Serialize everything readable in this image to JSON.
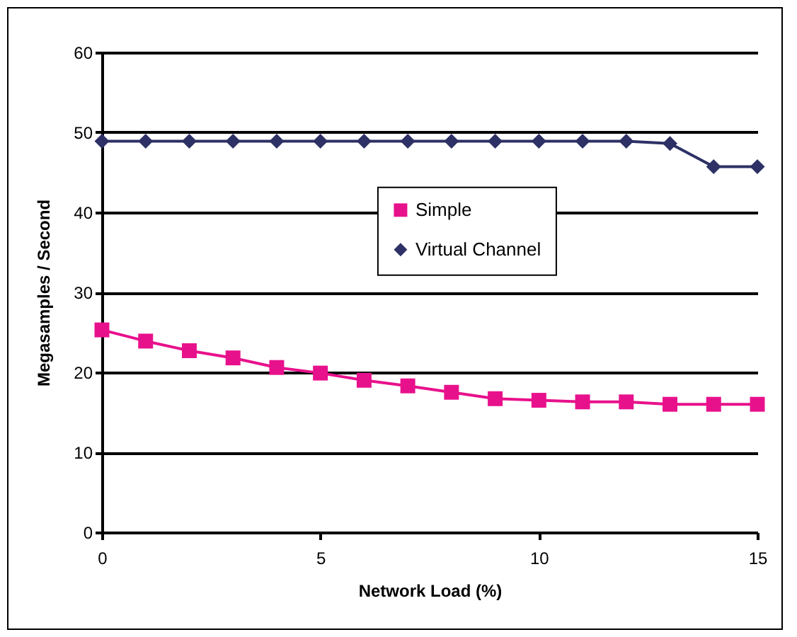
{
  "chart_data": {
    "type": "line",
    "xlabel": "Network Load (%)",
    "ylabel": "Megasamples / Second",
    "x": [
      0,
      1,
      2,
      3,
      4,
      5,
      6,
      7,
      8,
      9,
      10,
      11,
      12,
      13,
      14,
      15
    ],
    "series": [
      {
        "name": "Simple",
        "color": "#e8118c",
        "marker": "square",
        "values": [
          25.3,
          23.9,
          22.7,
          21.8,
          20.6,
          19.9,
          19.0,
          18.3,
          17.5,
          16.7,
          16.5,
          16.3,
          16.3,
          16.0,
          16.0,
          16.0
        ]
      },
      {
        "name": "Virtual Channel",
        "color": "#2e3165",
        "marker": "diamond",
        "values": [
          48.9,
          48.9,
          48.9,
          48.9,
          48.9,
          48.9,
          48.9,
          48.9,
          48.9,
          48.9,
          48.9,
          48.9,
          48.9,
          48.6,
          45.7,
          45.7
        ]
      }
    ],
    "xlim": [
      0,
      15
    ],
    "xticks": [
      0,
      5,
      10,
      15
    ],
    "ylim": [
      0,
      60
    ],
    "yticks": [
      0,
      10,
      20,
      30,
      40,
      50,
      60
    ],
    "grid": "y",
    "legend": "right",
    "line_style": "solid"
  }
}
